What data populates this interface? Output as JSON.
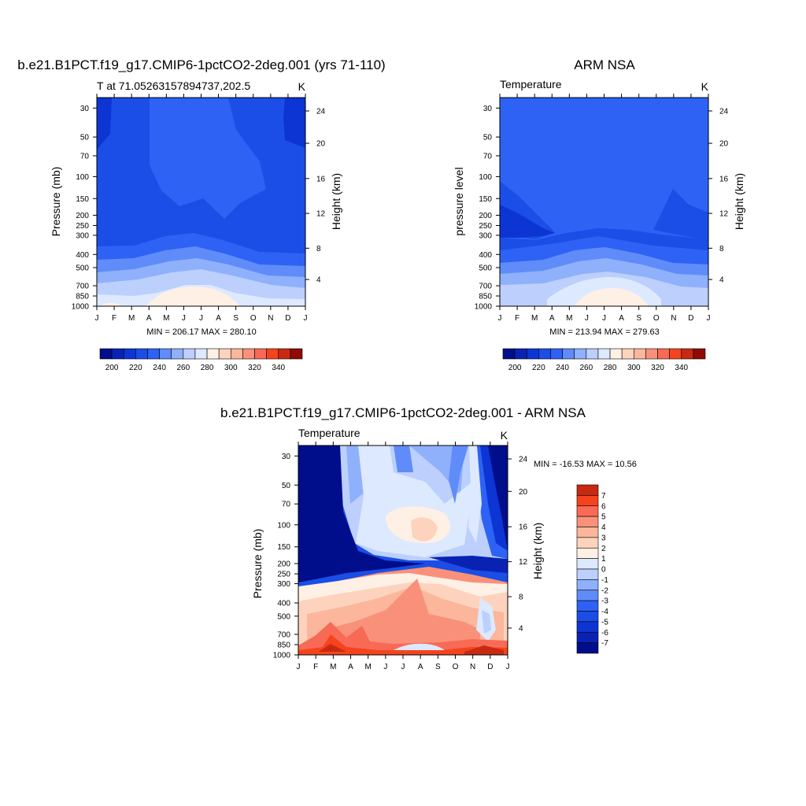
{
  "palette": {
    "model": [
      "#000e8c",
      "#0a22b4",
      "#0c35d4",
      "#1a4ee6",
      "#2d62f4",
      "#5f8cf8",
      "#8fb0fb",
      "#bccffd",
      "#dde9ff",
      "#fff0e6",
      "#fdd3bd",
      "#fbb69c",
      "#f9917a",
      "#f86a55",
      "#f5441d",
      "#c72a10",
      "#8f0b04"
    ],
    "diff": [
      "#000e8c",
      "#0a22b4",
      "#0c35d4",
      "#1a4ee6",
      "#2d62f4",
      "#5f8cf8",
      "#8fb0fb",
      "#bccffd",
      "#dde9ff",
      "#fff0e6",
      "#fdd3bd",
      "#fbb69c",
      "#f9917a",
      "#f86a55",
      "#f5441d",
      "#c72a10",
      "#8f0b04"
    ]
  },
  "chart_data": [
    {
      "type": "heatmap",
      "title": "b.e21.B1PCT.f19_g17.CMIP6-1pctCO2-2deg.001 (yrs 71-110)",
      "subtitle_left": "T at 71.05263157894737,202.5",
      "subtitle_right": "K",
      "ylabel": "Pressure (mb)",
      "ylabel_right": "Height (km)",
      "x_ticks": [
        "J",
        "F",
        "M",
        "A",
        "M",
        "J",
        "J",
        "A",
        "S",
        "O",
        "N",
        "D",
        "J"
      ],
      "y_ticks": [
        "30",
        "50",
        "70",
        "100",
        "150",
        "200",
        "250",
        "300",
        "400",
        "500",
        "700",
        "850",
        "1000"
      ],
      "y_ticks_right": [
        "24",
        "20",
        "16",
        "12",
        "8",
        "4"
      ],
      "stats": "MIN = 206.17 MAX = 280.10",
      "colorbar_labels": [
        "200",
        "220",
        "240",
        "260",
        "280",
        "300",
        "320",
        "340"
      ]
    },
    {
      "type": "heatmap",
      "title": "ARM NSA",
      "subtitle_left": "Temperature",
      "subtitle_right": "K",
      "ylabel": "pressure level",
      "ylabel_right": "Height (km)",
      "x_ticks": [
        "J",
        "F",
        "M",
        "A",
        "M",
        "J",
        "J",
        "A",
        "S",
        "O",
        "N",
        "D",
        "J"
      ],
      "y_ticks": [
        "30",
        "50",
        "70",
        "100",
        "150",
        "200",
        "250",
        "300",
        "400",
        "500",
        "700",
        "850",
        "1000"
      ],
      "y_ticks_right": [
        "24",
        "20",
        "16",
        "12",
        "8",
        "4"
      ],
      "stats": "MIN = 213.94 MAX = 279.63",
      "colorbar_labels": [
        "200",
        "220",
        "240",
        "260",
        "280",
        "300",
        "320",
        "340"
      ]
    },
    {
      "type": "heatmap",
      "title": "b.e21.B1PCT.f19_g17.CMIP6-1pctCO2-2deg.001 - ARM NSA",
      "subtitle_left": "Temperature",
      "subtitle_right": "K",
      "ylabel": "Pressure (mb)",
      "ylabel_right": "Height (km)",
      "x_ticks": [
        "J",
        "F",
        "M",
        "A",
        "M",
        "J",
        "J",
        "A",
        "S",
        "O",
        "N",
        "D",
        "J"
      ],
      "y_ticks": [
        "30",
        "50",
        "70",
        "100",
        "150",
        "200",
        "250",
        "300",
        "400",
        "500",
        "700",
        "850",
        "1000"
      ],
      "y_ticks_right": [
        "24",
        "20",
        "16",
        "12",
        "8",
        "4"
      ],
      "stats": "MIN = -16.53 MAX =  10.56",
      "colorbar_labels": [
        "7",
        "6",
        "5",
        "4",
        "3",
        "2",
        "1",
        "0",
        "-1",
        "-2",
        "-3",
        "-4",
        "-5",
        "-6",
        "-7"
      ]
    }
  ]
}
